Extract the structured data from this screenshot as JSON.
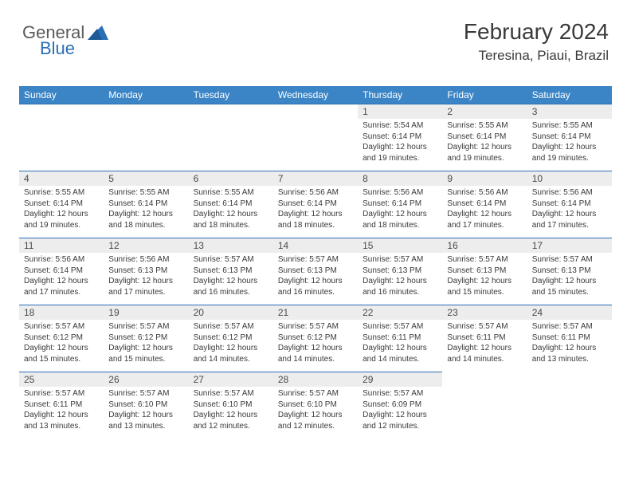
{
  "logo": {
    "general": "General",
    "blue": "Blue"
  },
  "header": {
    "title": "February 2024",
    "location": "Teresina, Piaui, Brazil"
  },
  "colors": {
    "header_bg": "#3b85c6",
    "header_text": "#ffffff",
    "daynum_bg": "#ededed",
    "row_border": "#2a6fb5",
    "body_text": "#3a3a3a",
    "logo_gray": "#5a5a5a",
    "logo_blue": "#2a6fb5"
  },
  "typography": {
    "title_fontsize": 28,
    "location_fontsize": 17,
    "dayheader_fontsize": 12,
    "daynum_fontsize": 12,
    "cell_fontsize": 10
  },
  "day_headers": [
    "Sunday",
    "Monday",
    "Tuesday",
    "Wednesday",
    "Thursday",
    "Friday",
    "Saturday"
  ],
  "weeks": [
    [
      null,
      null,
      null,
      null,
      {
        "n": "1",
        "sr": "Sunrise: 5:54 AM",
        "ss": "Sunset: 6:14 PM",
        "d1": "Daylight: 12 hours",
        "d2": "and 19 minutes."
      },
      {
        "n": "2",
        "sr": "Sunrise: 5:55 AM",
        "ss": "Sunset: 6:14 PM",
        "d1": "Daylight: 12 hours",
        "d2": "and 19 minutes."
      },
      {
        "n": "3",
        "sr": "Sunrise: 5:55 AM",
        "ss": "Sunset: 6:14 PM",
        "d1": "Daylight: 12 hours",
        "d2": "and 19 minutes."
      }
    ],
    [
      {
        "n": "4",
        "sr": "Sunrise: 5:55 AM",
        "ss": "Sunset: 6:14 PM",
        "d1": "Daylight: 12 hours",
        "d2": "and 19 minutes."
      },
      {
        "n": "5",
        "sr": "Sunrise: 5:55 AM",
        "ss": "Sunset: 6:14 PM",
        "d1": "Daylight: 12 hours",
        "d2": "and 18 minutes."
      },
      {
        "n": "6",
        "sr": "Sunrise: 5:55 AM",
        "ss": "Sunset: 6:14 PM",
        "d1": "Daylight: 12 hours",
        "d2": "and 18 minutes."
      },
      {
        "n": "7",
        "sr": "Sunrise: 5:56 AM",
        "ss": "Sunset: 6:14 PM",
        "d1": "Daylight: 12 hours",
        "d2": "and 18 minutes."
      },
      {
        "n": "8",
        "sr": "Sunrise: 5:56 AM",
        "ss": "Sunset: 6:14 PM",
        "d1": "Daylight: 12 hours",
        "d2": "and 18 minutes."
      },
      {
        "n": "9",
        "sr": "Sunrise: 5:56 AM",
        "ss": "Sunset: 6:14 PM",
        "d1": "Daylight: 12 hours",
        "d2": "and 17 minutes."
      },
      {
        "n": "10",
        "sr": "Sunrise: 5:56 AM",
        "ss": "Sunset: 6:14 PM",
        "d1": "Daylight: 12 hours",
        "d2": "and 17 minutes."
      }
    ],
    [
      {
        "n": "11",
        "sr": "Sunrise: 5:56 AM",
        "ss": "Sunset: 6:14 PM",
        "d1": "Daylight: 12 hours",
        "d2": "and 17 minutes."
      },
      {
        "n": "12",
        "sr": "Sunrise: 5:56 AM",
        "ss": "Sunset: 6:13 PM",
        "d1": "Daylight: 12 hours",
        "d2": "and 17 minutes."
      },
      {
        "n": "13",
        "sr": "Sunrise: 5:57 AM",
        "ss": "Sunset: 6:13 PM",
        "d1": "Daylight: 12 hours",
        "d2": "and 16 minutes."
      },
      {
        "n": "14",
        "sr": "Sunrise: 5:57 AM",
        "ss": "Sunset: 6:13 PM",
        "d1": "Daylight: 12 hours",
        "d2": "and 16 minutes."
      },
      {
        "n": "15",
        "sr": "Sunrise: 5:57 AM",
        "ss": "Sunset: 6:13 PM",
        "d1": "Daylight: 12 hours",
        "d2": "and 16 minutes."
      },
      {
        "n": "16",
        "sr": "Sunrise: 5:57 AM",
        "ss": "Sunset: 6:13 PM",
        "d1": "Daylight: 12 hours",
        "d2": "and 15 minutes."
      },
      {
        "n": "17",
        "sr": "Sunrise: 5:57 AM",
        "ss": "Sunset: 6:13 PM",
        "d1": "Daylight: 12 hours",
        "d2": "and 15 minutes."
      }
    ],
    [
      {
        "n": "18",
        "sr": "Sunrise: 5:57 AM",
        "ss": "Sunset: 6:12 PM",
        "d1": "Daylight: 12 hours",
        "d2": "and 15 minutes."
      },
      {
        "n": "19",
        "sr": "Sunrise: 5:57 AM",
        "ss": "Sunset: 6:12 PM",
        "d1": "Daylight: 12 hours",
        "d2": "and 15 minutes."
      },
      {
        "n": "20",
        "sr": "Sunrise: 5:57 AM",
        "ss": "Sunset: 6:12 PM",
        "d1": "Daylight: 12 hours",
        "d2": "and 14 minutes."
      },
      {
        "n": "21",
        "sr": "Sunrise: 5:57 AM",
        "ss": "Sunset: 6:12 PM",
        "d1": "Daylight: 12 hours",
        "d2": "and 14 minutes."
      },
      {
        "n": "22",
        "sr": "Sunrise: 5:57 AM",
        "ss": "Sunset: 6:11 PM",
        "d1": "Daylight: 12 hours",
        "d2": "and 14 minutes."
      },
      {
        "n": "23",
        "sr": "Sunrise: 5:57 AM",
        "ss": "Sunset: 6:11 PM",
        "d1": "Daylight: 12 hours",
        "d2": "and 14 minutes."
      },
      {
        "n": "24",
        "sr": "Sunrise: 5:57 AM",
        "ss": "Sunset: 6:11 PM",
        "d1": "Daylight: 12 hours",
        "d2": "and 13 minutes."
      }
    ],
    [
      {
        "n": "25",
        "sr": "Sunrise: 5:57 AM",
        "ss": "Sunset: 6:11 PM",
        "d1": "Daylight: 12 hours",
        "d2": "and 13 minutes."
      },
      {
        "n": "26",
        "sr": "Sunrise: 5:57 AM",
        "ss": "Sunset: 6:10 PM",
        "d1": "Daylight: 12 hours",
        "d2": "and 13 minutes."
      },
      {
        "n": "27",
        "sr": "Sunrise: 5:57 AM",
        "ss": "Sunset: 6:10 PM",
        "d1": "Daylight: 12 hours",
        "d2": "and 12 minutes."
      },
      {
        "n": "28",
        "sr": "Sunrise: 5:57 AM",
        "ss": "Sunset: 6:10 PM",
        "d1": "Daylight: 12 hours",
        "d2": "and 12 minutes."
      },
      {
        "n": "29",
        "sr": "Sunrise: 5:57 AM",
        "ss": "Sunset: 6:09 PM",
        "d1": "Daylight: 12 hours",
        "d2": "and 12 minutes."
      },
      null,
      null
    ]
  ]
}
